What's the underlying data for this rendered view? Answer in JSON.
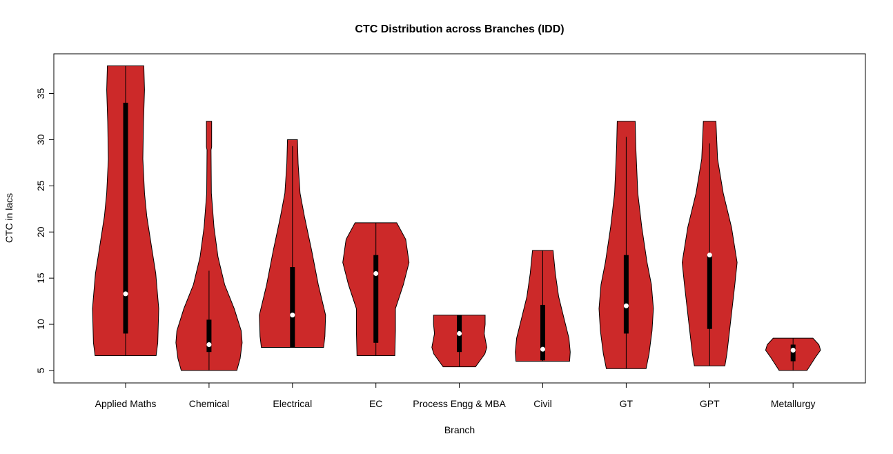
{
  "chart_data": {
    "type": "violin",
    "title": "CTC Distribution across Branches (IDD)",
    "xlabel": "Branch",
    "ylabel": "CTC in lacs",
    "ylim": [
      3.65,
      39.3
    ],
    "yticks": [
      5,
      10,
      15,
      20,
      25,
      30,
      35
    ],
    "grid": false,
    "colors": {
      "fill": "#CC2929",
      "outline": "#000000",
      "box": "#000000",
      "median": "#FFFFFF"
    },
    "categories": [
      "Applied Maths",
      "Chemical",
      "Electrical",
      "EC",
      "Process Engg & MBA",
      "Civil",
      "GT",
      "GPT",
      "Metallurgy"
    ],
    "series": [
      {
        "category": "Applied Maths",
        "min": 6.6,
        "max": 38,
        "q1": 9,
        "q3": 34,
        "median": 13.3,
        "whisker_low": 6.6,
        "whisker_high": 38,
        "density": [
          [
            6.6,
            0.92
          ],
          [
            8.0,
            0.97
          ],
          [
            11.7,
            1
          ],
          [
            15.5,
            0.91
          ],
          [
            18.0,
            0.8
          ],
          [
            21.7,
            0.64
          ],
          [
            24.2,
            0.57
          ],
          [
            27.9,
            0.52
          ],
          [
            31.9,
            0.54
          ],
          [
            35.4,
            0.57
          ],
          [
            38,
            0.55
          ]
        ]
      },
      {
        "category": "Chemical",
        "min": 5,
        "max": 32,
        "q1": 7,
        "q3": 10.5,
        "median": 7.8,
        "whisker_low": 5,
        "whisker_high": 15.8,
        "density": [
          [
            5,
            0.84
          ],
          [
            6.3,
            0.94
          ],
          [
            8.0,
            1
          ],
          [
            9.3,
            0.97
          ],
          [
            11.7,
            0.76
          ],
          [
            14.3,
            0.47
          ],
          [
            17.3,
            0.27
          ],
          [
            20.5,
            0.15
          ],
          [
            24.2,
            0.07
          ],
          [
            28.9,
            0.06
          ],
          [
            29.2,
            0.08
          ],
          [
            32,
            0.08
          ]
        ]
      },
      {
        "category": "Electrical",
        "min": 7.5,
        "max": 30,
        "q1": 7.5,
        "q3": 16.2,
        "median": 11,
        "whisker_low": 7.5,
        "whisker_high": 29.3,
        "density": [
          [
            7.5,
            0.94
          ],
          [
            8.7,
            0.98
          ],
          [
            11,
            1
          ],
          [
            14.3,
            0.78
          ],
          [
            18.0,
            0.58
          ],
          [
            21.7,
            0.36
          ],
          [
            24.2,
            0.23
          ],
          [
            27.4,
            0.17
          ],
          [
            30,
            0.15
          ]
        ]
      },
      {
        "category": "EC",
        "min": 6.6,
        "max": 21,
        "q1": 8,
        "q3": 17.5,
        "median": 15.5,
        "whisker_low": 6.6,
        "whisker_high": 21,
        "density": [
          [
            6.6,
            0.57
          ],
          [
            9.3,
            0.59
          ],
          [
            11.7,
            0.59
          ],
          [
            14.3,
            0.83
          ],
          [
            16.7,
            1
          ],
          [
            19.2,
            0.9
          ],
          [
            21,
            0.63
          ]
        ]
      },
      {
        "category": "Process Engg & MBA",
        "min": 5.4,
        "max": 11,
        "q1": 7,
        "q3": 11,
        "median": 9,
        "whisker_low": 5.4,
        "whisker_high": 11,
        "density": [
          [
            5.4,
            0.49
          ],
          [
            6.8,
            0.77
          ],
          [
            7.5,
            0.83
          ],
          [
            9,
            0.75
          ],
          [
            10,
            0.78
          ],
          [
            11,
            0.78
          ]
        ]
      },
      {
        "category": "Civil",
        "min": 6,
        "max": 18,
        "q1": 6.1,
        "q3": 12.1,
        "median": 7.3,
        "whisker_low": 6,
        "whisker_high": 18,
        "density": [
          [
            6,
            0.81
          ],
          [
            7,
            0.83
          ],
          [
            8.5,
            0.79
          ],
          [
            10.5,
            0.65
          ],
          [
            13,
            0.48
          ],
          [
            15.5,
            0.38
          ],
          [
            18,
            0.31
          ]
        ]
      },
      {
        "category": "GT",
        "min": 5.2,
        "max": 32,
        "q1": 9,
        "q3": 17.5,
        "median": 12,
        "whisker_low": 5.2,
        "whisker_high": 30.3,
        "density": [
          [
            5.2,
            0.6
          ],
          [
            6.8,
            0.69
          ],
          [
            9.3,
            0.78
          ],
          [
            11.7,
            0.82
          ],
          [
            14.3,
            0.76
          ],
          [
            16.7,
            0.63
          ],
          [
            20.5,
            0.47
          ],
          [
            24.2,
            0.35
          ],
          [
            29.2,
            0.29
          ],
          [
            32,
            0.27
          ]
        ]
      },
      {
        "category": "GPT",
        "min": 5.5,
        "max": 32,
        "q1": 9.5,
        "q3": 17.5,
        "median": 17.5,
        "whisker_low": 5.5,
        "whisker_high": 29.6,
        "density": [
          [
            5.5,
            0.46
          ],
          [
            6.8,
            0.52
          ],
          [
            10.5,
            0.64
          ],
          [
            14.3,
            0.76
          ],
          [
            16.7,
            0.83
          ],
          [
            20.5,
            0.66
          ],
          [
            24.2,
            0.41
          ],
          [
            27.9,
            0.24
          ],
          [
            32,
            0.19
          ]
        ]
      },
      {
        "category": "Metallurgy",
        "min": 5,
        "max": 8.5,
        "q1": 6,
        "q3": 7.8,
        "median": 7.2,
        "whisker_low": 5,
        "whisker_high": 8.5,
        "density": [
          [
            5,
            0.42
          ],
          [
            6.5,
            0.69
          ],
          [
            7.2,
            0.83
          ],
          [
            7.8,
            0.78
          ],
          [
            8.5,
            0.6
          ]
        ]
      }
    ]
  }
}
